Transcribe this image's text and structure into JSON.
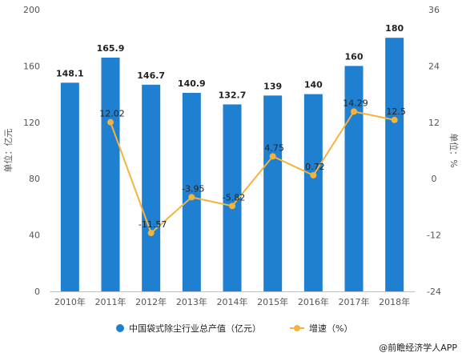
{
  "chart_data": {
    "type": "bar",
    "categories": [
      "2010年",
      "2011年",
      "2012年",
      "2013年",
      "2014年",
      "2015年",
      "2016年",
      "2017年",
      "2018年"
    ],
    "series": [
      {
        "name": "中国袋式除尘行业总产值（亿元）",
        "chart_type": "bar",
        "axis": "left",
        "values": [
          148.1,
          165.9,
          146.7,
          140.9,
          132.7,
          139,
          140,
          160,
          180
        ],
        "labels": [
          "148.1",
          "165.9",
          "146.7",
          "140.9",
          "132.7",
          "139",
          "140",
          "160",
          "180"
        ],
        "color": "#1f7fd0"
      },
      {
        "name": "增速（%）",
        "chart_type": "line",
        "axis": "right",
        "values": [
          null,
          12.02,
          -11.57,
          -3.95,
          -5.82,
          4.75,
          0.72,
          14.29,
          12.5
        ],
        "labels": [
          "",
          "12.02",
          "-11.57",
          "-3.95",
          "-5.82",
          "4.75",
          "0.72",
          "14.29",
          "12.5"
        ],
        "color": "#f2b43a"
      }
    ],
    "ylabel_left": "单位：亿元",
    "ylabel_right": "单位：%",
    "ylim_left": [
      0,
      200
    ],
    "ylim_right": [
      -24,
      36
    ],
    "yticks_left": [
      "0",
      "40",
      "80",
      "120",
      "160",
      "200"
    ],
    "yticks_right": [
      "-24",
      "-12",
      "0",
      "12",
      "24",
      "36"
    ],
    "grid": false,
    "legend_position": "bottom"
  },
  "credit": "@前瞻经济学人APP"
}
